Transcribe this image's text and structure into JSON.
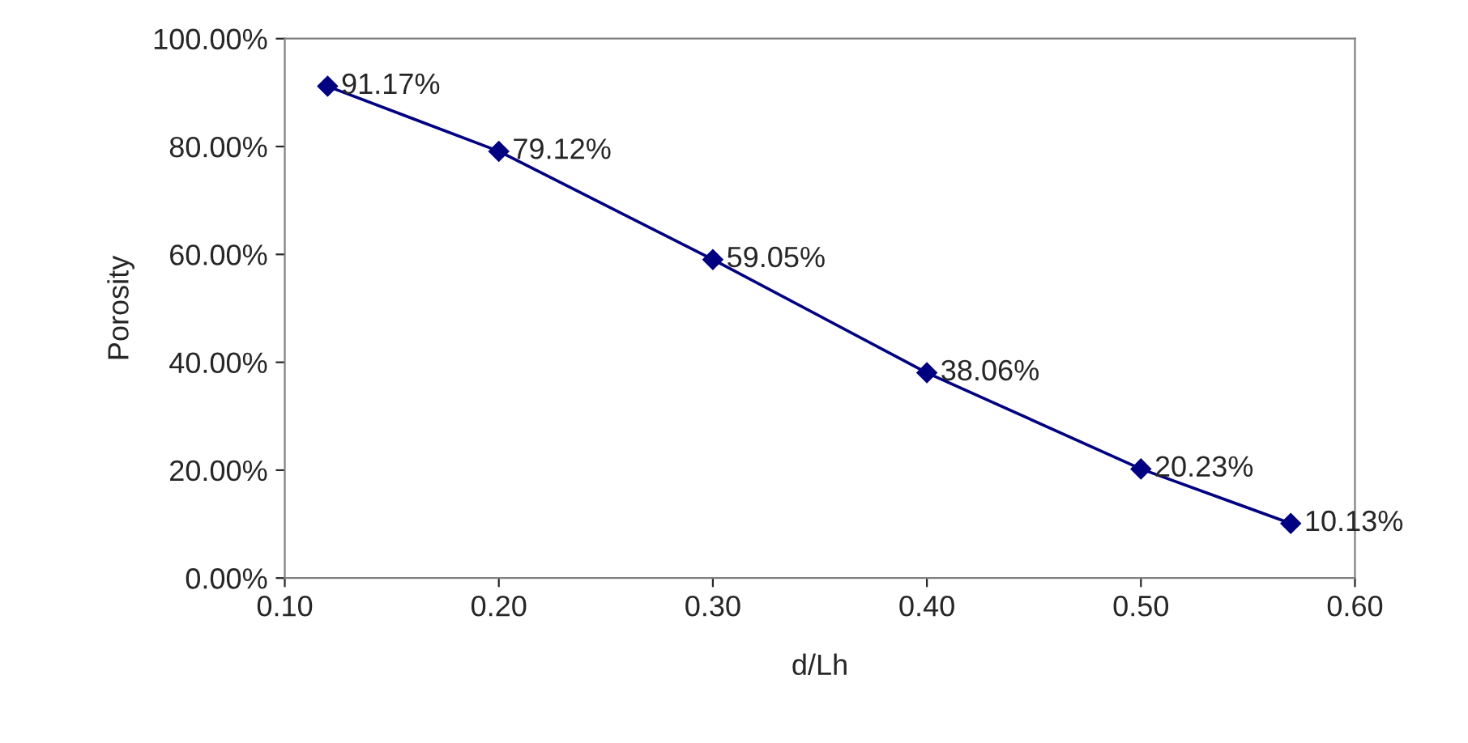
{
  "chart_data": {
    "type": "line",
    "xlabel": "d/Lh",
    "ylabel": "Porosity",
    "x": [
      0.12,
      0.2,
      0.3,
      0.4,
      0.5,
      0.57
    ],
    "series": [
      {
        "color": "#000080",
        "values": [
          91.17,
          79.12,
          59.05,
          38.06,
          20.23,
          10.13
        ],
        "value_labels": [
          "91.17%",
          "79.12%",
          "59.05%",
          "38.06%",
          "20.23%",
          "10.13%"
        ]
      }
    ],
    "xlim": [
      0.1,
      0.6
    ],
    "xticks": [
      {
        "value": 0.1,
        "label": "0.10"
      },
      {
        "value": 0.2,
        "label": "0.20"
      },
      {
        "value": 0.3,
        "label": "0.30"
      },
      {
        "value": 0.4,
        "label": "0.40"
      },
      {
        "value": 0.5,
        "label": "0.50"
      },
      {
        "value": 0.6,
        "label": "0.60"
      }
    ],
    "ylim": [
      0,
      100
    ],
    "yticks": [
      {
        "value": 0,
        "label": "0.00%"
      },
      {
        "value": 20,
        "label": "20.00%"
      },
      {
        "value": 40,
        "label": "40.00%"
      },
      {
        "value": 60,
        "label": "60.00%"
      },
      {
        "value": 80,
        "label": "80.00%"
      },
      {
        "value": 100,
        "label": "100.00%"
      }
    ],
    "marker": "diamond",
    "line_style": "solid",
    "grid": false,
    "legend": false
  }
}
